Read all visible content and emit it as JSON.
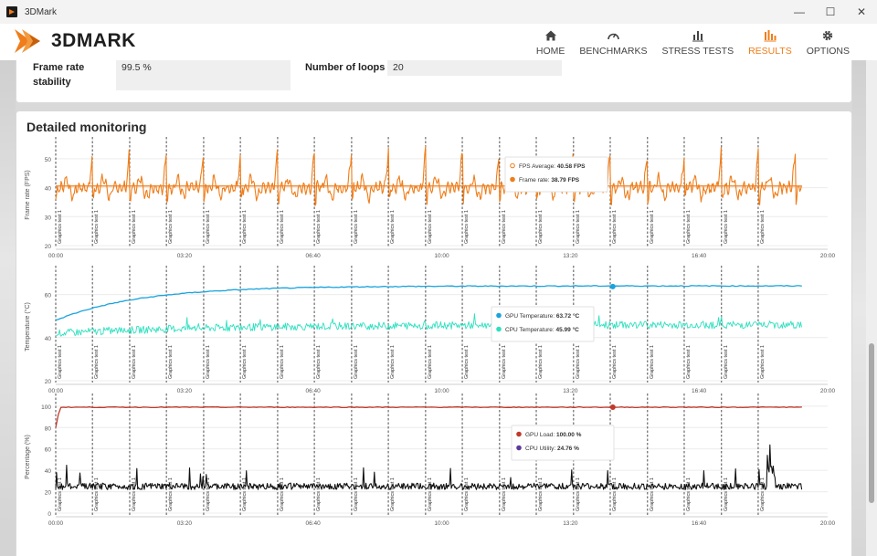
{
  "window": {
    "title": "3DMark",
    "minimize": "—",
    "maximize": "☐",
    "close": "✕"
  },
  "app": {
    "logo_text": "3DMARK"
  },
  "nav": [
    {
      "id": "home",
      "label": "HOME",
      "icon": "home-icon",
      "active": false
    },
    {
      "id": "benchmarks",
      "label": "BENCHMARKS",
      "icon": "gauge-icon",
      "active": false
    },
    {
      "id": "stress",
      "label": "STRESS TESTS",
      "icon": "bar-chart-icon",
      "active": false
    },
    {
      "id": "results",
      "label": "RESULTS",
      "icon": "results-bars-icon",
      "active": true
    },
    {
      "id": "options",
      "label": "OPTIONS",
      "icon": "gear-icon",
      "active": false
    }
  ],
  "stats": {
    "frame_rate_stability_label": "Frame rate stability",
    "frame_rate_stability_value": "99.5 %",
    "loops_label": "Number of loops",
    "loops_value": "20"
  },
  "monitoring": {
    "title": "Detailed monitoring"
  },
  "colors": {
    "accent": "#ef7d1a",
    "gpu_temp": "#1aa3dd",
    "cpu_temp": "#2fe0c0",
    "gpu_load": "#c0392b",
    "cpu_util": "#111111"
  },
  "chart_data": [
    {
      "type": "line",
      "ylabel": "Frame rate (FPS)",
      "ylim": [
        20,
        55
      ],
      "yticks": [
        20,
        30,
        40,
        50
      ],
      "xlim": [
        0,
        1200
      ],
      "xticks": [
        "00:00",
        "03:20",
        "06:40",
        "10:00",
        "13:20",
        "16:40",
        "20:00"
      ],
      "marker_label": "Graphics test 1",
      "marker_times": [
        0,
        57,
        115,
        172,
        230,
        287,
        345,
        402,
        460,
        517,
        575,
        632,
        690,
        747,
        805,
        862,
        920,
        977,
        1035,
        1092
      ],
      "series": [
        {
          "name": "FPS Average",
          "value": 40.58,
          "display": "40.58 FPS"
        },
        {
          "name": "Frame rate",
          "display": "38.79 FPS",
          "baseline": 40,
          "peak": 53
        }
      ],
      "legend": [
        {
          "label": "FPS Average:",
          "value": "40.58 FPS",
          "color": "#ef7d1a",
          "hollow": true
        },
        {
          "label": "Frame rate:",
          "value": "38.79 FPS",
          "color": "#ef7d1a",
          "hollow": false
        }
      ]
    },
    {
      "type": "line",
      "ylabel": "Temperature (°C)",
      "ylim": [
        20,
        70
      ],
      "yticks": [
        20,
        40,
        60
      ],
      "xlim": [
        0,
        1200
      ],
      "xticks": [
        "00:00",
        "03:20",
        "06:40",
        "10:00",
        "13:20",
        "16:40",
        "20:00"
      ],
      "marker_label": "Graphics test 1",
      "marker_times": [
        0,
        57,
        115,
        172,
        230,
        287,
        345,
        402,
        460,
        517,
        575,
        632,
        690,
        747,
        805,
        862,
        920,
        977,
        1035,
        1092
      ],
      "series": [
        {
          "name": "GPU Temperature",
          "display": "63.72 °C",
          "start": 48,
          "plateau": 64
        },
        {
          "name": "CPU Temperature",
          "display": "45.99 °C",
          "start": 42,
          "plateau": 46
        }
      ],
      "legend": [
        {
          "label": "GPU Temperature:",
          "value": "63.72 °C",
          "color": "#1aa3dd",
          "hollow": false
        },
        {
          "label": "CPU Temperature:",
          "value": "45.99 °C",
          "color": "#2fe0c0",
          "hollow": false
        }
      ]
    },
    {
      "type": "line",
      "ylabel": "Percentage (%)",
      "ylim": [
        0,
        105
      ],
      "yticks": [
        0,
        20,
        40,
        60,
        80,
        100
      ],
      "xlim": [
        0,
        1200
      ],
      "xticks": [
        "00:00",
        "03:20",
        "06:40",
        "10:00",
        "13:20",
        "16:40",
        "20:00"
      ],
      "marker_label": "Graphics test 1",
      "marker_times": [
        0,
        57,
        115,
        172,
        230,
        287,
        345,
        402,
        460,
        517,
        575,
        632,
        690,
        747,
        805,
        862,
        920,
        977,
        1035,
        1092
      ],
      "series": [
        {
          "name": "GPU Load",
          "display": "100.00 %",
          "plateau": 99
        },
        {
          "name": "CPU Utility",
          "display": "24.76 %",
          "baseline": 25,
          "max": 72
        }
      ],
      "legend": [
        {
          "label": "GPU Load:",
          "value": "100.00 %",
          "color": "#c0392b",
          "hollow": false
        },
        {
          "label": "CPU Utility:",
          "value": "24.76 %",
          "color": "#5b3a9a",
          "hollow": false
        }
      ]
    }
  ]
}
